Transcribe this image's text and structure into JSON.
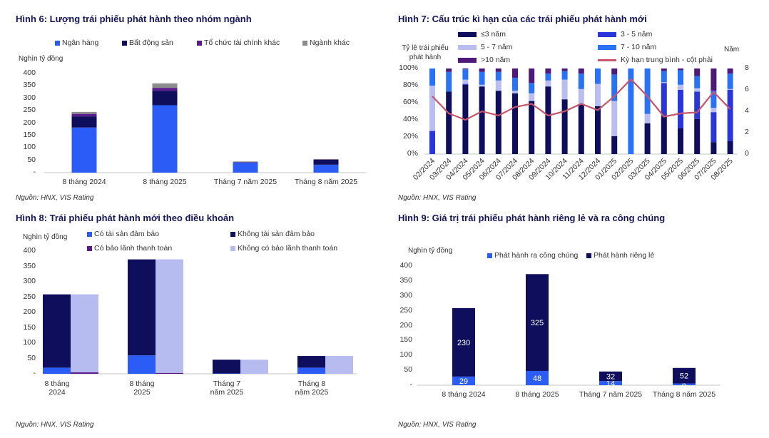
{
  "chart_data": [
    {
      "type": "bar",
      "stacked": true,
      "title": "Hình 6: Lượng trái phiếu phát hành theo nhóm ngành",
      "ylabel": "Nghìn tỷ đồng",
      "source": "Nguồn: HNX, VIS Rating",
      "ylim": [
        0,
        400
      ],
      "yticks": [
        "-",
        "50",
        "100",
        "150",
        "200",
        "250",
        "300",
        "350",
        "400"
      ],
      "categories": [
        "8 tháng 2024",
        "8 tháng 2025",
        "Tháng 7 năm 2025",
        "Tháng 8 năm 2025"
      ],
      "series": [
        {
          "name": "Ngân hàng",
          "color": "#2b5cf5",
          "values": [
            182,
            272,
            41,
            32
          ]
        },
        {
          "name": "Bất động sản",
          "color": "#0e0e5c",
          "values": [
            45,
            58,
            1,
            20
          ]
        },
        {
          "name": "Tổ chức tài chính khác",
          "color": "#5a1a8c",
          "values": [
            10,
            12,
            1,
            1
          ]
        },
        {
          "name": "Ngành khác",
          "color": "#8c8c8c",
          "values": [
            8,
            18,
            2,
            2
          ]
        }
      ]
    },
    {
      "type": "bar",
      "stacked": true,
      "title": "Hình 7: Cấu trúc kì hạn của các trái phiếu phát hành mới",
      "ylabel": "Tỷ lệ trái phiếu phát hành",
      "y2label": "Năm",
      "source": "Nguồn: HNX, VIS Rating",
      "ylim": [
        0,
        100
      ],
      "y2lim": [
        0,
        8
      ],
      "yticks": [
        "0%",
        "20%",
        "40%",
        "60%",
        "80%",
        "100%"
      ],
      "y2ticks": [
        "0",
        "2",
        "4",
        "6",
        "8"
      ],
      "categories": [
        "02/2024",
        "03/2024",
        "04/2024",
        "05/2024",
        "06/2024",
        "07/2024",
        "08/2024",
        "09/2024",
        "10/2024",
        "11/2024",
        "12/2024",
        "01/2025",
        "02/2025",
        "03/2025",
        "04/2025",
        "05/2025",
        "06/2025",
        "07/2025",
        "08/2025"
      ],
      "series": [
        {
          "name": "≤3 năm",
          "color": "#0e0e5c",
          "values": [
            0,
            73,
            81,
            79,
            74,
            71,
            62,
            79,
            64,
            58,
            56,
            21,
            0,
            36,
            44,
            30,
            41,
            14,
            15
          ]
        },
        {
          "name": "3 - 5 năm",
          "color": "#2a36d8",
          "values": [
            27,
            0,
            1,
            0,
            0,
            0,
            0,
            0,
            0,
            0,
            0,
            0,
            0,
            0,
            39,
            45,
            32,
            35,
            60
          ]
        },
        {
          "name": "5 - 7 năm",
          "color": "#b9bdf0",
          "values": [
            53,
            0,
            5,
            2,
            12,
            3,
            9,
            7,
            23,
            18,
            26,
            41,
            0,
            11,
            1,
            6,
            4,
            5,
            1
          ]
        },
        {
          "name": "7 - 10 năm",
          "color": "#2a72f5",
          "values": [
            20,
            23,
            12,
            15,
            10,
            15,
            12,
            8,
            10,
            18,
            18,
            31,
            100,
            53,
            13,
            17,
            14,
            20,
            18
          ]
        },
        {
          "name": ">10 năm",
          "color": "#4e1a7a",
          "values": [
            0,
            4,
            1,
            4,
            4,
            11,
            17,
            6,
            3,
            6,
            0,
            7,
            0,
            0,
            3,
            2,
            9,
            26,
            6
          ]
        }
      ],
      "line": {
        "name": "Kỳ hạn trung bình - cột phải",
        "color": "#c8566a",
        "values": [
          5.4,
          3.8,
          3.2,
          4.0,
          3.6,
          4.4,
          4.7,
          3.6,
          4.0,
          4.7,
          4.1,
          5.4,
          7.0,
          5.4,
          3.5,
          3.8,
          3.9,
          5.8,
          4.2
        ]
      }
    },
    {
      "type": "bar",
      "stacked": true,
      "title": "Hình 8: Trái phiếu phát hành mới theo điều khoản",
      "ylabel": "Nghìn tỷ đồng",
      "source": "Nguồn: HNX, VIS Rating",
      "ylim": [
        0,
        400
      ],
      "yticks": [
        "-",
        "50",
        "100",
        "150",
        "200",
        "250",
        "300",
        "350",
        "400"
      ],
      "categories": [
        "8 tháng 2024",
        "8 tháng 2025",
        "Tháng 7 năm 2025",
        "Tháng 8 năm 2025"
      ],
      "series": [
        {
          "name": "Có tài sản đảm bảo",
          "color": "#2b5cf5",
          "stack": "collateral",
          "values": [
            20,
            60,
            1,
            20
          ]
        },
        {
          "name": "Không tài sản đảm bảo",
          "color": "#0e0e5c",
          "stack": "collateral",
          "values": [
            239,
            313,
            45,
            38
          ]
        },
        {
          "name": "Có bảo lãnh thanh toán",
          "color": "#5a1a8c",
          "stack": "guarantee",
          "values": [
            5,
            3,
            0,
            0
          ]
        },
        {
          "name": "Không có bảo lãnh thanh toán",
          "color": "#b7bcf0",
          "stack": "guarantee",
          "values": [
            254,
            370,
            46,
            58
          ]
        }
      ]
    },
    {
      "type": "bar",
      "stacked": true,
      "title": "Hình 9: Giá trị trái phiếu phát hành riêng lẻ và ra công chúng",
      "ylabel": "Nghìn tỷ đồng",
      "source": "Nguồn: HNX, VIS Rating",
      "ylim": [
        0,
        400
      ],
      "yticks": [
        "-",
        "50",
        "100",
        "150",
        "200",
        "250",
        "300",
        "350",
        "400"
      ],
      "categories": [
        "8 tháng 2024",
        "8 tháng 2025",
        "Tháng 7 năm 2025",
        "Tháng 8 năm 2025"
      ],
      "series": [
        {
          "name": "Phát hành ra công chúng",
          "color": "#2b5cf5",
          "values": [
            29,
            48,
            14,
            6
          ]
        },
        {
          "name": "Phát hành riêng lẻ",
          "color": "#0e0e5c",
          "values": [
            230,
            325,
            32,
            52
          ]
        }
      ],
      "data_labels": true
    }
  ]
}
